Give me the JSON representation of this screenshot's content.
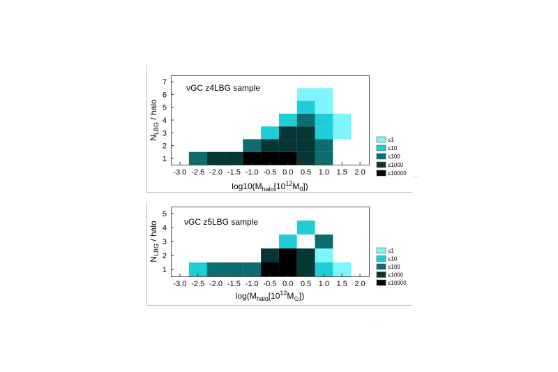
{
  "chart_data": [
    {
      "type": "heatmap",
      "title": "νGC z4LBG sample",
      "xlabel": {
        "main": "log10(M",
        "sub": "halo",
        "mid": "[10",
        "sup": "12",
        "unit": "M",
        "unit_sub": "0",
        "end": "])"
      },
      "ylabel": {
        "main": "N",
        "sub": "LBG",
        "end": " / halo"
      },
      "xticks": [
        "-3.0",
        "-2.5",
        "-2.0",
        "-1.5",
        "-1.0",
        "-0.5",
        "0.0",
        "0.5",
        "1.0",
        "1.5",
        "2.0"
      ],
      "yticks": [
        "1",
        "2",
        "3",
        "4",
        "5",
        "6",
        "7"
      ],
      "xlim": [
        -3.25,
        2.25
      ],
      "ylim": [
        0.5,
        7.5
      ],
      "bin_width": 0.5,
      "legend": [
        {
          "label": "≤1",
          "color": "#7df5fb"
        },
        {
          "label": "≤10",
          "color": "#1ecdd7"
        },
        {
          "label": "≤100",
          "color": "#0d6c6f"
        },
        {
          "label": "≤1000",
          "color": "#063636"
        },
        {
          "label": "≤10000",
          "color": "#000000"
        }
      ],
      "cells": [
        {
          "x": -2.5,
          "y": 1,
          "level": 2
        },
        {
          "x": -2.0,
          "y": 1,
          "level": 3
        },
        {
          "x": -1.5,
          "y": 1,
          "level": 3
        },
        {
          "x": -1.0,
          "y": 1,
          "level": 4
        },
        {
          "x": -0.5,
          "y": 1,
          "level": 4
        },
        {
          "x": 0.0,
          "y": 1,
          "level": 4
        },
        {
          "x": 0.5,
          "y": 1,
          "level": 3
        },
        {
          "x": 1.0,
          "y": 1,
          "level": 2
        },
        {
          "x": -1.0,
          "y": 2,
          "level": 2
        },
        {
          "x": -0.5,
          "y": 2,
          "level": 3
        },
        {
          "x": 0.0,
          "y": 2,
          "level": 3
        },
        {
          "x": 0.5,
          "y": 2,
          "level": 3
        },
        {
          "x": 1.0,
          "y": 2,
          "level": 2
        },
        {
          "x": -0.5,
          "y": 3,
          "level": 1
        },
        {
          "x": 0.0,
          "y": 3,
          "level": 3
        },
        {
          "x": 0.5,
          "y": 3,
          "level": 3
        },
        {
          "x": 1.0,
          "y": 3,
          "level": 1
        },
        {
          "x": 1.5,
          "y": 3,
          "level": 0
        },
        {
          "x": 0.0,
          "y": 4,
          "level": 1
        },
        {
          "x": 0.5,
          "y": 4,
          "level": 2
        },
        {
          "x": 1.0,
          "y": 4,
          "level": 1
        },
        {
          "x": 1.5,
          "y": 4,
          "level": 0
        },
        {
          "x": 0.5,
          "y": 5,
          "level": 1
        },
        {
          "x": 1.0,
          "y": 5,
          "level": 0
        },
        {
          "x": 0.5,
          "y": 6,
          "level": 0
        },
        {
          "x": 1.0,
          "y": 6,
          "level": 0
        }
      ]
    },
    {
      "type": "heatmap",
      "title": "νGC z5LBG sample",
      "xlabel": {
        "main": "log(M",
        "sub": "halo",
        "mid": "[10",
        "sup": "12",
        "unit": "M",
        "unit_sub": "⊙",
        "end": "])"
      },
      "ylabel": {
        "main": "N",
        "sub": "LBG",
        "end": " / halo"
      },
      "xticks": [
        "-3.0",
        "-2.5",
        "-2.0",
        "-1.5",
        "-1.0",
        "-0.5",
        "0.0",
        "0.5",
        "1.0",
        "1.5",
        "2.0"
      ],
      "yticks": [
        "1",
        "2",
        "3",
        "4",
        "5"
      ],
      "xlim": [
        -3.25,
        2.25
      ],
      "ylim": [
        0.5,
        5.5
      ],
      "bin_width": 0.5,
      "legend": [
        {
          "label": "≤1",
          "color": "#7df5fb"
        },
        {
          "label": "≤10",
          "color": "#1ecdd7"
        },
        {
          "label": "≤100",
          "color": "#0d6c6f"
        },
        {
          "label": "≤1000",
          "color": "#063636"
        },
        {
          "label": "≤10000",
          "color": "#000000"
        }
      ],
      "cells": [
        {
          "x": -2.5,
          "y": 1,
          "level": 1
        },
        {
          "x": -2.0,
          "y": 1,
          "level": 2
        },
        {
          "x": -1.5,
          "y": 1,
          "level": 2
        },
        {
          "x": -1.0,
          "y": 1,
          "level": 2
        },
        {
          "x": -0.5,
          "y": 1,
          "level": 4
        },
        {
          "x": 0.0,
          "y": 1,
          "level": 4
        },
        {
          "x": 0.5,
          "y": 1,
          "level": 3
        },
        {
          "x": 1.0,
          "y": 1,
          "level": 1
        },
        {
          "x": 1.5,
          "y": 1,
          "level": 0
        },
        {
          "x": -0.5,
          "y": 2,
          "level": 3
        },
        {
          "x": 0.0,
          "y": 2,
          "level": 4
        },
        {
          "x": 0.5,
          "y": 2,
          "level": 3
        },
        {
          "x": 1.0,
          "y": 2,
          "level": 0
        },
        {
          "x": 0.0,
          "y": 3,
          "level": 1
        },
        {
          "x": 1.0,
          "y": 3,
          "level": 2
        },
        {
          "x": 0.5,
          "y": 4,
          "level": 1
        }
      ]
    }
  ]
}
